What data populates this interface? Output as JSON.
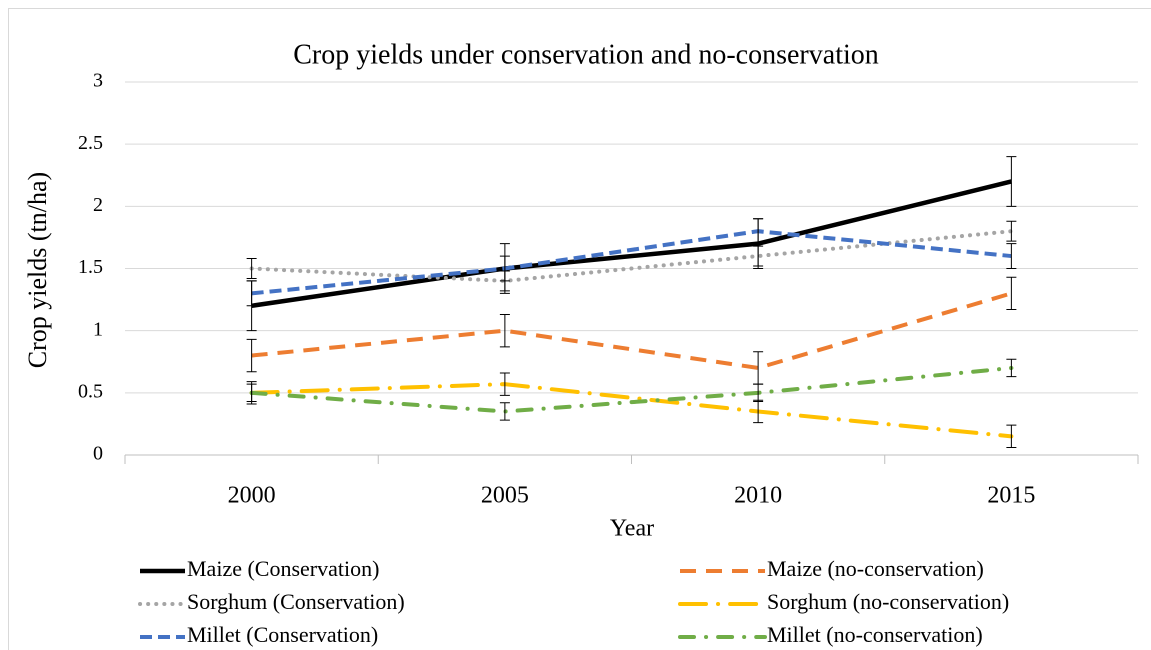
{
  "chart_data": {
    "type": "line",
    "title": "Crop yields under conservation and no-conservation",
    "x_label": "Year",
    "y_label": "Crop yields (tn/ha)",
    "categories": [
      "2000",
      "2005",
      "2010",
      "2015"
    ],
    "ylim": [
      0,
      3
    ],
    "yticks": [
      0,
      0.5,
      1,
      1.5,
      2,
      2.5,
      3
    ],
    "grid": true,
    "series": [
      {
        "name": "Maize (Conservation)",
        "color": "#000000",
        "values": [
          1.2,
          1.5,
          1.7,
          2.2
        ],
        "errors": [
          0.2,
          0.2,
          0.2,
          0.2
        ]
      },
      {
        "name": "Maize (no-conservation)",
        "color": "#ed7d31",
        "values": [
          0.8,
          1.0,
          0.7,
          1.3
        ],
        "errors": [
          0.13,
          0.13,
          0.13,
          0.13
        ]
      },
      {
        "name": "Sorghum (Conservation)",
        "color": "#a5a5a5",
        "values": [
          1.5,
          1.4,
          1.6,
          1.8
        ],
        "errors": [
          0.08,
          0.08,
          0.08,
          0.08
        ]
      },
      {
        "name": "Sorghum (no-conservation)",
        "color": "#ffc000",
        "values": [
          0.5,
          0.57,
          0.35,
          0.15
        ],
        "errors": [
          0.09,
          0.09,
          0.09,
          0.09
        ]
      },
      {
        "name": "Millet (Conservation)",
        "color": "#4472c4",
        "values": [
          1.3,
          1.5,
          1.8,
          1.6
        ],
        "errors": [
          0.1,
          0.1,
          0.1,
          0.1
        ]
      },
      {
        "name": "Millet (no-conservation)",
        "color": "#70ad47",
        "values": [
          0.5,
          0.35,
          0.5,
          0.7
        ],
        "errors": [
          0.07,
          0.07,
          0.07,
          0.07
        ]
      }
    ]
  }
}
